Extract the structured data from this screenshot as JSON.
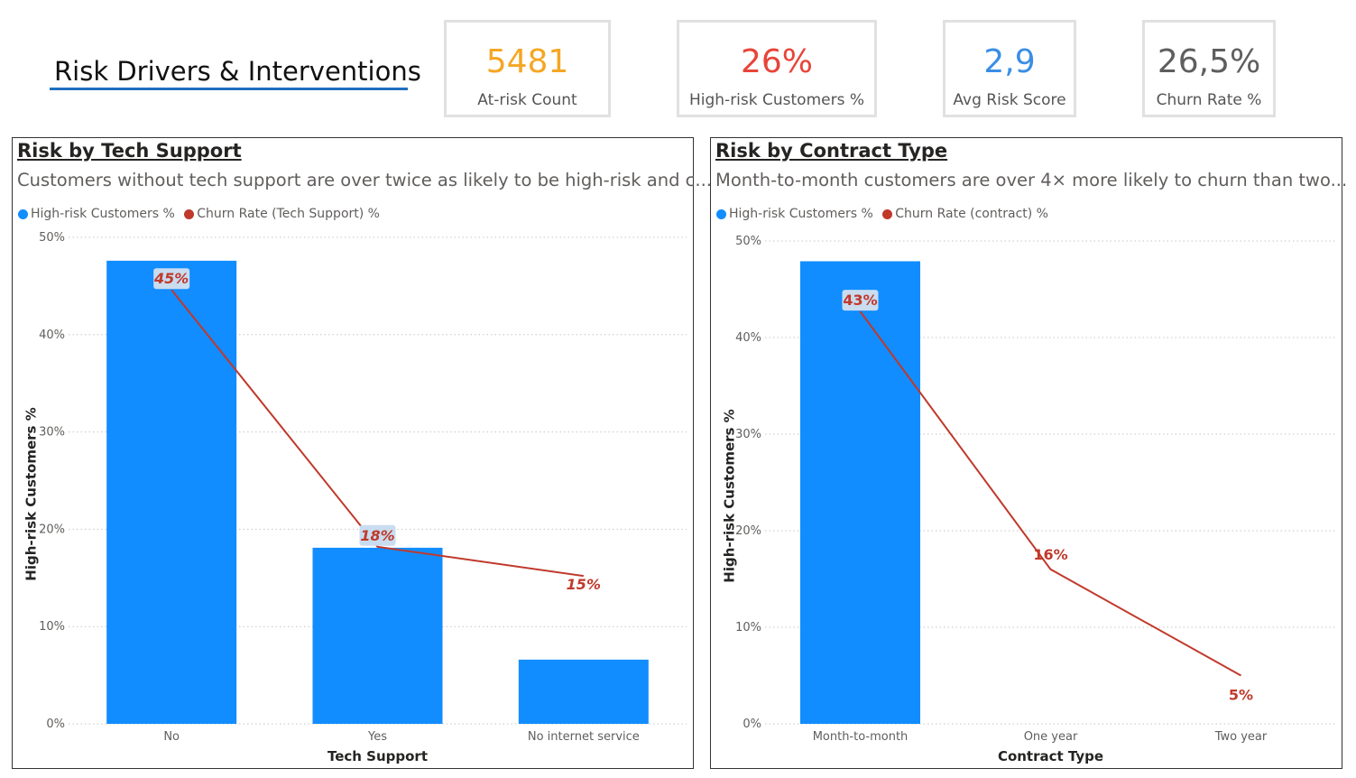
{
  "header": {
    "title": "Risk Drivers & Interventions",
    "underline_color": "#1f6fbf"
  },
  "kpis": [
    {
      "value": "5481",
      "label": "At-risk Count",
      "color": "#f5a623"
    },
    {
      "value": "26%",
      "label": "High-risk Customers %",
      "color": "#e8443a"
    },
    {
      "value": "2,9",
      "label": "Avg Risk Score",
      "color": "#3a8ee6"
    },
    {
      "value": "26,5%",
      "label": "Churn Rate %",
      "color": "#5e5e5e"
    }
  ],
  "colors": {
    "bar": "#118dff",
    "line": "#c0392b",
    "label_bg": "#c9dcf0",
    "grid": "#c8c6c4"
  },
  "chart_data": [
    {
      "type": "bar",
      "title": "Risk by Tech Support",
      "subtitle": "Customers without tech support are over twice as likely to be high-risk and c...",
      "legend": [
        "High-risk Customers %",
        "Churn Rate (Tech Support) %"
      ],
      "xlabel": "Tech Support",
      "ylabel": "High-risk Customers %",
      "categories": [
        "No",
        "Yes",
        "No internet service"
      ],
      "ylim": [
        0,
        50
      ],
      "yticks": [
        "0%",
        "10%",
        "20%",
        "30%",
        "40%",
        "50%"
      ],
      "series": [
        {
          "name": "High-risk Customers %",
          "kind": "bar",
          "values": [
            47.6,
            18.1,
            6.6
          ]
        },
        {
          "name": "Churn Rate (Tech Support) %",
          "kind": "line",
          "values": [
            44.6,
            18.2,
            15.2
          ],
          "labels": [
            "45%",
            "18%",
            "15%"
          ],
          "label_boxed": [
            true,
            true,
            false
          ]
        }
      ]
    },
    {
      "type": "bar",
      "title": "Risk by Contract Type",
      "subtitle": "Month-to-month customers are over 4× more likely to churn than two...",
      "legend": [
        "High-risk Customers %",
        "Churn Rate (contract) %"
      ],
      "xlabel": "Contract Type",
      "ylabel": "High-risk Customers %",
      "categories": [
        "Month-to-month",
        "One year",
        "Two year"
      ],
      "ylim": [
        0,
        50
      ],
      "yticks": [
        "0%",
        "10%",
        "20%",
        "30%",
        "40%",
        "50%"
      ],
      "series": [
        {
          "name": "High-risk Customers %",
          "kind": "bar",
          "values": [
            47.9,
            0,
            0
          ]
        },
        {
          "name": "Churn Rate (contract) %",
          "kind": "line",
          "values": [
            42.7,
            16.0,
            5.0
          ],
          "labels": [
            "43%",
            "16%",
            "5%"
          ],
          "label_boxed": [
            true,
            false,
            false
          ]
        }
      ]
    }
  ]
}
